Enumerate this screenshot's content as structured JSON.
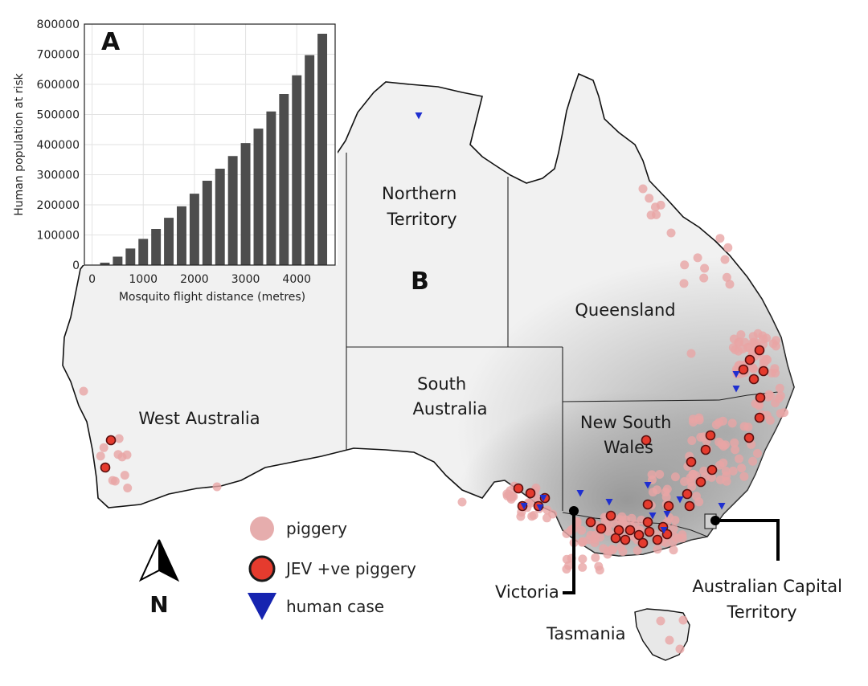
{
  "panels": {
    "a_label": "A",
    "b_label": "B"
  },
  "states": {
    "northern_territory": [
      "Northern",
      "Territory"
    ],
    "queensland": [
      "Queensland"
    ],
    "west_australia": [
      "West Australia"
    ],
    "south_australia": [
      "South",
      "Australia"
    ],
    "new_south_wales": [
      "New South",
      "Wales"
    ]
  },
  "callouts": {
    "victoria": "Victoria",
    "tasmania": "Tasmania",
    "act": [
      "Australian Capital",
      "Territory"
    ]
  },
  "legend": {
    "piggery": "piggery",
    "jev_piggery": "JEV +ve piggery",
    "human_case": "human case"
  },
  "north_arrow": {
    "label": "N",
    "icon": "north-arrow-icon"
  },
  "colors": {
    "piggery": "#e8a5a5",
    "jev_piggery": "#e53b2e",
    "jev_edge": "#5a1010",
    "human_case": "#1f2fd0",
    "bar": "#4d4d4d",
    "land_light": "#f2f2f2",
    "land_dark": "#8f8f8f"
  },
  "chart_data": {
    "type": "bar",
    "title": "",
    "xlabel": "Mosquito flight distance (metres)",
    "ylabel": "Human population at risk",
    "x": [
      250,
      500,
      750,
      1000,
      1250,
      1500,
      1750,
      2000,
      2250,
      2500,
      2750,
      3000,
      3250,
      3500,
      3750,
      4000,
      4250,
      4500
    ],
    "values": [
      8000,
      28000,
      55000,
      87000,
      120000,
      157000,
      195000,
      237000,
      280000,
      320000,
      362000,
      405000,
      453000,
      510000,
      568000,
      630000,
      697000,
      768000
    ],
    "xlim": [
      -150,
      4750
    ],
    "ylim": [
      0,
      800000
    ],
    "x_ticks": [
      "0",
      "1000",
      "2000",
      "3000",
      "4000"
    ],
    "y_ticks": [
      "0",
      "100000",
      "200000",
      "300000",
      "400000",
      "500000",
      "600000",
      "700000",
      "800000"
    ],
    "grid": true
  }
}
